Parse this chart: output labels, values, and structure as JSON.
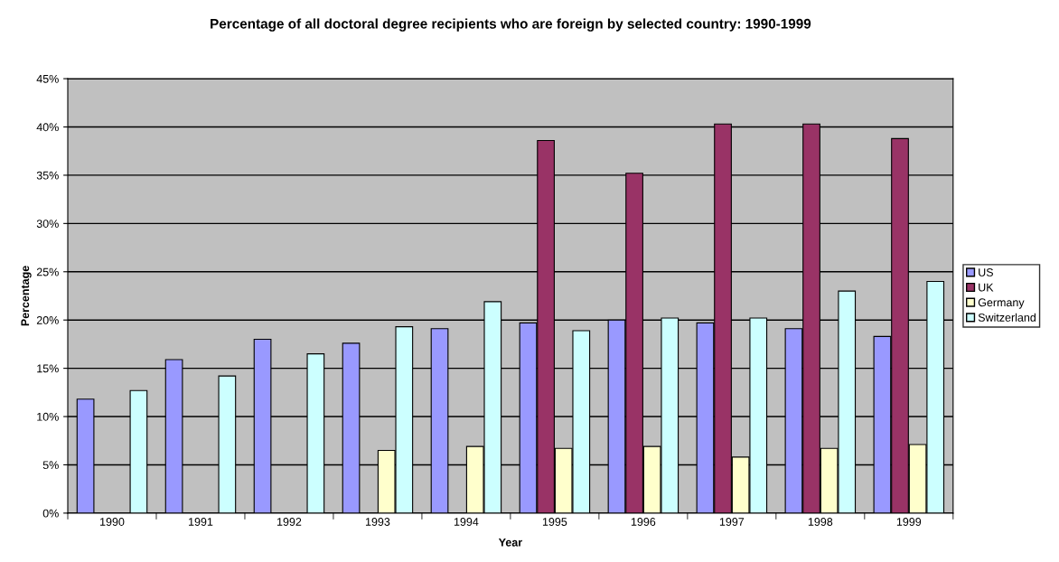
{
  "chart_data": {
    "type": "bar",
    "title": "Percentage of all doctoral degree recipients who are foreign by selected country: 1990-1999",
    "xlabel": "Year",
    "ylabel": "Percentage",
    "categories": [
      "1990",
      "1991",
      "1992",
      "1993",
      "1994",
      "1995",
      "1996",
      "1997",
      "1998",
      "1999"
    ],
    "series": [
      {
        "name": "US",
        "color": "#9999ff",
        "values": [
          11.8,
          15.9,
          18.0,
          17.6,
          19.1,
          19.7,
          20.0,
          19.7,
          19.1,
          18.3
        ]
      },
      {
        "name": "UK",
        "color": "#993366",
        "values": [
          null,
          null,
          null,
          null,
          null,
          38.6,
          35.2,
          40.3,
          40.3,
          38.8
        ]
      },
      {
        "name": "Germany",
        "color": "#ffffcc",
        "values": [
          null,
          null,
          null,
          6.5,
          6.9,
          6.7,
          6.9,
          5.8,
          6.7,
          7.1
        ]
      },
      {
        "name": "Switzerland",
        "color": "#ccffff",
        "values": [
          12.7,
          14.2,
          16.5,
          19.3,
          21.9,
          18.9,
          20.2,
          20.2,
          23.0,
          24.0
        ]
      }
    ],
    "ylim": [
      0,
      45
    ],
    "yticks": [
      {
        "value": 0,
        "label": "0%"
      },
      {
        "value": 5,
        "label": "5%"
      },
      {
        "value": 10,
        "label": "10%"
      },
      {
        "value": 15,
        "label": "15%"
      },
      {
        "value": 20,
        "label": "20%"
      },
      {
        "value": 25,
        "label": "25%"
      },
      {
        "value": 30,
        "label": "30%"
      },
      {
        "value": 35,
        "label": "35%"
      },
      {
        "value": 40,
        "label": "40%"
      },
      {
        "value": 45,
        "label": "45%"
      }
    ],
    "grid": "y",
    "legend": "right"
  }
}
